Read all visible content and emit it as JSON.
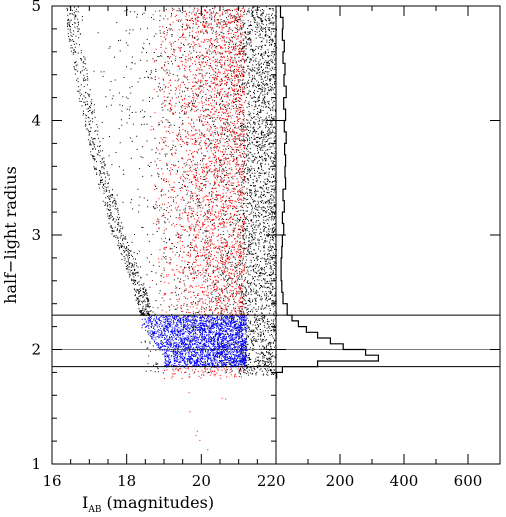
{
  "chart_data": [
    {
      "type": "scatter",
      "panel": "left",
      "xlabel_main": "I",
      "xlabel_sub": "AB",
      "xlabel_rest": "(magnitudes)",
      "ylabel": "half−light radius",
      "xlim": [
        16,
        22
      ],
      "ylim": [
        1,
        5
      ],
      "xticks": [
        16,
        18,
        20,
        22
      ],
      "yticks": [
        1,
        2,
        3,
        4,
        5
      ],
      "xtick_labels": [
        "16",
        "18",
        "20",
        "22"
      ],
      "ytick_labels": [
        "1",
        "2",
        "3",
        "4",
        "5"
      ],
      "horizontal_lines": [
        1.85,
        2.0,
        2.3
      ],
      "series": [
        {
          "color": "#000000",
          "description_points": "field objects",
          "envelope": {
            "bright_edge": [
              [
                18.35,
                2.3
              ],
              [
                18.1,
                2.6
              ],
              [
                17.6,
                3.0
              ],
              [
                17.1,
                3.6
              ],
              [
                16.7,
                4.2
              ],
              [
                16.35,
                4.9
              ]
            ],
            "faint_limit": 22.0,
            "min_radius": 1.75
          }
        },
        {
          "color": "#ff0000",
          "region": {
            "x": [
              18.5,
              21.2
            ],
            "y": [
              1.85,
              5.0
            ]
          }
        },
        {
          "color": "#0000ff",
          "region": {
            "x": [
              18.3,
              21.2
            ],
            "y": [
              1.85,
              2.3
            ]
          }
        }
      ]
    },
    {
      "type": "histogram",
      "panel": "right",
      "xlim": [
        0,
        700
      ],
      "xticks": [
        0,
        200,
        400,
        600
      ],
      "xtick_labels": [
        "0",
        "200",
        "400",
        "600"
      ],
      "ylim": [
        1,
        5
      ],
      "horizontal_lines": [
        1.85,
        2.0,
        2.3
      ],
      "bins": [
        [
          1.75,
          1.8,
          2
        ],
        [
          1.8,
          1.85,
          20
        ],
        [
          1.85,
          1.9,
          130
        ],
        [
          1.9,
          1.95,
          320
        ],
        [
          1.95,
          2.0,
          280
        ],
        [
          2.0,
          2.05,
          210
        ],
        [
          2.05,
          2.1,
          170
        ],
        [
          2.1,
          2.15,
          130
        ],
        [
          2.15,
          2.2,
          95
        ],
        [
          2.2,
          2.25,
          70
        ],
        [
          2.25,
          2.3,
          50
        ],
        [
          2.3,
          2.4,
          35
        ],
        [
          2.4,
          2.5,
          22
        ],
        [
          2.5,
          2.6,
          18
        ],
        [
          2.6,
          2.7,
          16
        ],
        [
          2.7,
          2.8,
          16
        ],
        [
          2.8,
          2.9,
          18
        ],
        [
          2.9,
          3.0,
          20
        ],
        [
          3.0,
          3.1,
          24
        ],
        [
          3.1,
          3.2,
          20
        ],
        [
          3.2,
          3.3,
          26
        ],
        [
          3.3,
          3.4,
          22
        ],
        [
          3.4,
          3.5,
          30
        ],
        [
          3.5,
          3.6,
          28
        ],
        [
          3.6,
          3.7,
          30
        ],
        [
          3.7,
          3.8,
          27
        ],
        [
          3.8,
          3.9,
          32
        ],
        [
          3.9,
          4.0,
          26
        ],
        [
          4.0,
          4.1,
          30
        ],
        [
          4.1,
          4.2,
          24
        ],
        [
          4.2,
          4.3,
          32
        ],
        [
          4.3,
          4.4,
          25
        ],
        [
          4.4,
          4.5,
          28
        ],
        [
          4.5,
          4.6,
          22
        ],
        [
          4.6,
          4.7,
          26
        ],
        [
          4.7,
          4.8,
          20
        ],
        [
          4.8,
          4.9,
          22
        ],
        [
          4.9,
          5.0,
          14
        ]
      ]
    }
  ]
}
